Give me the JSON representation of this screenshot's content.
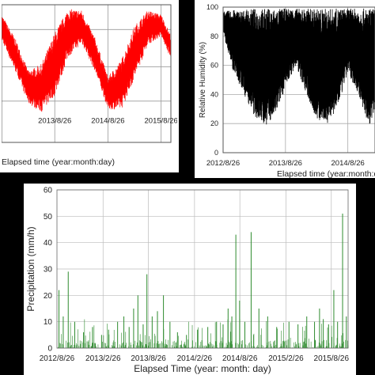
{
  "chart_data": [
    {
      "type": "line",
      "title": "",
      "xlabel": "Elapsed time (year:month:day)",
      "ylabel": "",
      "x_tick_labels": [
        "2013/8/26",
        "2014/8/26",
        "2015/8/26"
      ],
      "x_range": [
        "2012-08-26",
        "2015-11-01"
      ],
      "grid": true,
      "series": [
        {
          "color": "#ff0000",
          "envelope": {
            "x": [
              "2012-08-26",
              "2012-11-26",
              "2013-02-26",
              "2013-05-26",
              "2013-08-26",
              "2013-11-26",
              "2014-02-26",
              "2014-05-26",
              "2014-08-26",
              "2014-11-26",
              "2015-02-26",
              "2015-05-26",
              "2015-08-26",
              "2015-11-01"
            ],
            "upper": [
              0.93,
              0.76,
              0.52,
              0.57,
              0.8,
              0.97,
              0.96,
              0.77,
              0.48,
              0.6,
              0.85,
              0.96,
              0.93,
              0.78
            ],
            "lower": [
              0.74,
              0.52,
              0.28,
              0.22,
              0.34,
              0.62,
              0.72,
              0.52,
              0.24,
              0.24,
              0.47,
              0.71,
              0.77,
              0.6
            ]
          }
        }
      ]
    },
    {
      "type": "line",
      "title": "",
      "xlabel": "Elapsed time (year:month:day)",
      "ylabel": "Relative Humidity (%)",
      "ylim": [
        0,
        100
      ],
      "y_ticks": [
        0,
        20,
        40,
        60,
        80,
        100
      ],
      "x_tick_labels": [
        "2012/8/26",
        "2013/8/26",
        "2014/8/26"
      ],
      "x_range": [
        "2012-08-26",
        "2015-02-01"
      ],
      "grid": true,
      "series": [
        {
          "color": "#000000",
          "envelope": {
            "x": [
              "2012-08-26",
              "2012-10-26",
              "2012-12-26",
              "2013-02-26",
              "2013-04-26",
              "2013-06-26",
              "2013-08-26",
              "2013-10-26",
              "2013-12-26",
              "2014-02-26",
              "2014-04-26",
              "2014-06-26",
              "2014-08-26",
              "2014-10-26",
              "2014-12-26",
              "2015-02-01"
            ],
            "upper": [
              97,
              98,
              98,
              99,
              99,
              99,
              99,
              99,
              99,
              99,
              99,
              99,
              99,
              99,
              99,
              99
            ],
            "lower": [
              82,
              55,
              40,
              25,
              18,
              25,
              45,
              60,
              40,
              22,
              20,
              30,
              55,
              40,
              18,
              30
            ]
          }
        }
      ]
    },
    {
      "type": "bar",
      "title": "",
      "xlabel": "Elapsed Time (year: month: day)",
      "ylabel": "Precipitation (mm/h)",
      "ylim": [
        0,
        60
      ],
      "y_ticks": [
        0,
        10,
        20,
        30,
        40,
        50,
        60
      ],
      "x_tick_labels": [
        "2012/8/26",
        "2013/2/26",
        "2013/8/26",
        "2014/2/26",
        "2014/8/26",
        "2015/2/26",
        "2015/8/26"
      ],
      "x_range": [
        "2012-08-26",
        "2015-11-01"
      ],
      "grid": true,
      "series": [
        {
          "color": "#2e8b2e",
          "x": [
            "2012-09-03",
            "2012-09-20",
            "2012-10-10",
            "2012-11-05",
            "2012-12-10",
            "2013-01-15",
            "2013-02-20",
            "2013-03-20",
            "2013-04-25",
            "2013-05-20",
            "2013-06-10",
            "2013-06-28",
            "2013-07-15",
            "2013-08-05",
            "2013-08-20",
            "2013-09-10",
            "2013-10-01",
            "2013-10-25",
            "2013-11-20",
            "2013-12-20",
            "2014-01-25",
            "2014-03-10",
            "2014-04-20",
            "2014-05-25",
            "2014-06-20",
            "2014-07-10",
            "2014-07-25",
            "2014-08-10",
            "2014-08-25",
            "2014-09-15",
            "2014-10-10",
            "2014-11-10",
            "2014-12-15",
            "2015-01-20",
            "2015-03-10",
            "2015-04-15",
            "2015-05-20",
            "2015-06-20",
            "2015-07-10",
            "2015-07-25",
            "2015-08-15",
            "2015-09-05",
            "2015-09-20",
            "2015-10-10",
            "2015-10-25"
          ],
          "values": [
            22,
            12,
            29,
            10,
            6,
            8,
            5,
            7,
            10,
            12,
            8,
            15,
            20,
            9,
            28,
            12,
            14,
            20,
            10,
            6,
            5,
            7,
            8,
            10,
            9,
            15,
            12,
            43,
            18,
            10,
            44,
            15,
            12,
            8,
            10,
            9,
            12,
            10,
            15,
            11,
            9,
            22,
            10,
            51,
            12
          ]
        }
      ]
    }
  ]
}
